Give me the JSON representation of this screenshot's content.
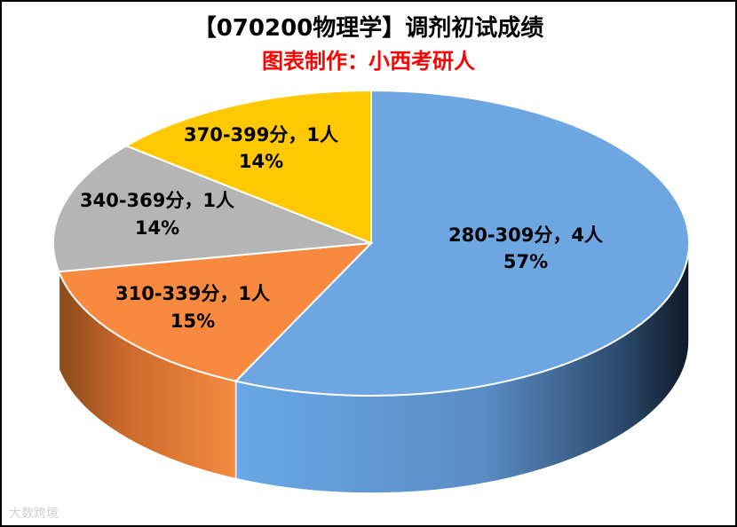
{
  "chart_data": {
    "type": "pie",
    "title": "【070200物理学】调剂初试成绩",
    "subtitle": "图表制作：小西考研人",
    "slices": [
      {
        "range": "280-309分，4人",
        "count": 4,
        "percent": "57%",
        "value": 57,
        "color": "#6ea6e2"
      },
      {
        "range": "310-339分，1人",
        "count": 1,
        "percent": "15%",
        "value": 15,
        "color": "#f78a3f"
      },
      {
        "range": "340-369分，1人",
        "count": 1,
        "percent": "14%",
        "value": 14,
        "color": "#b5b5b5"
      },
      {
        "range": "370-399分，1人",
        "count": 1,
        "percent": "14%",
        "value": 14,
        "color": "#ffc800"
      }
    ]
  },
  "watermark": "大数跨境"
}
